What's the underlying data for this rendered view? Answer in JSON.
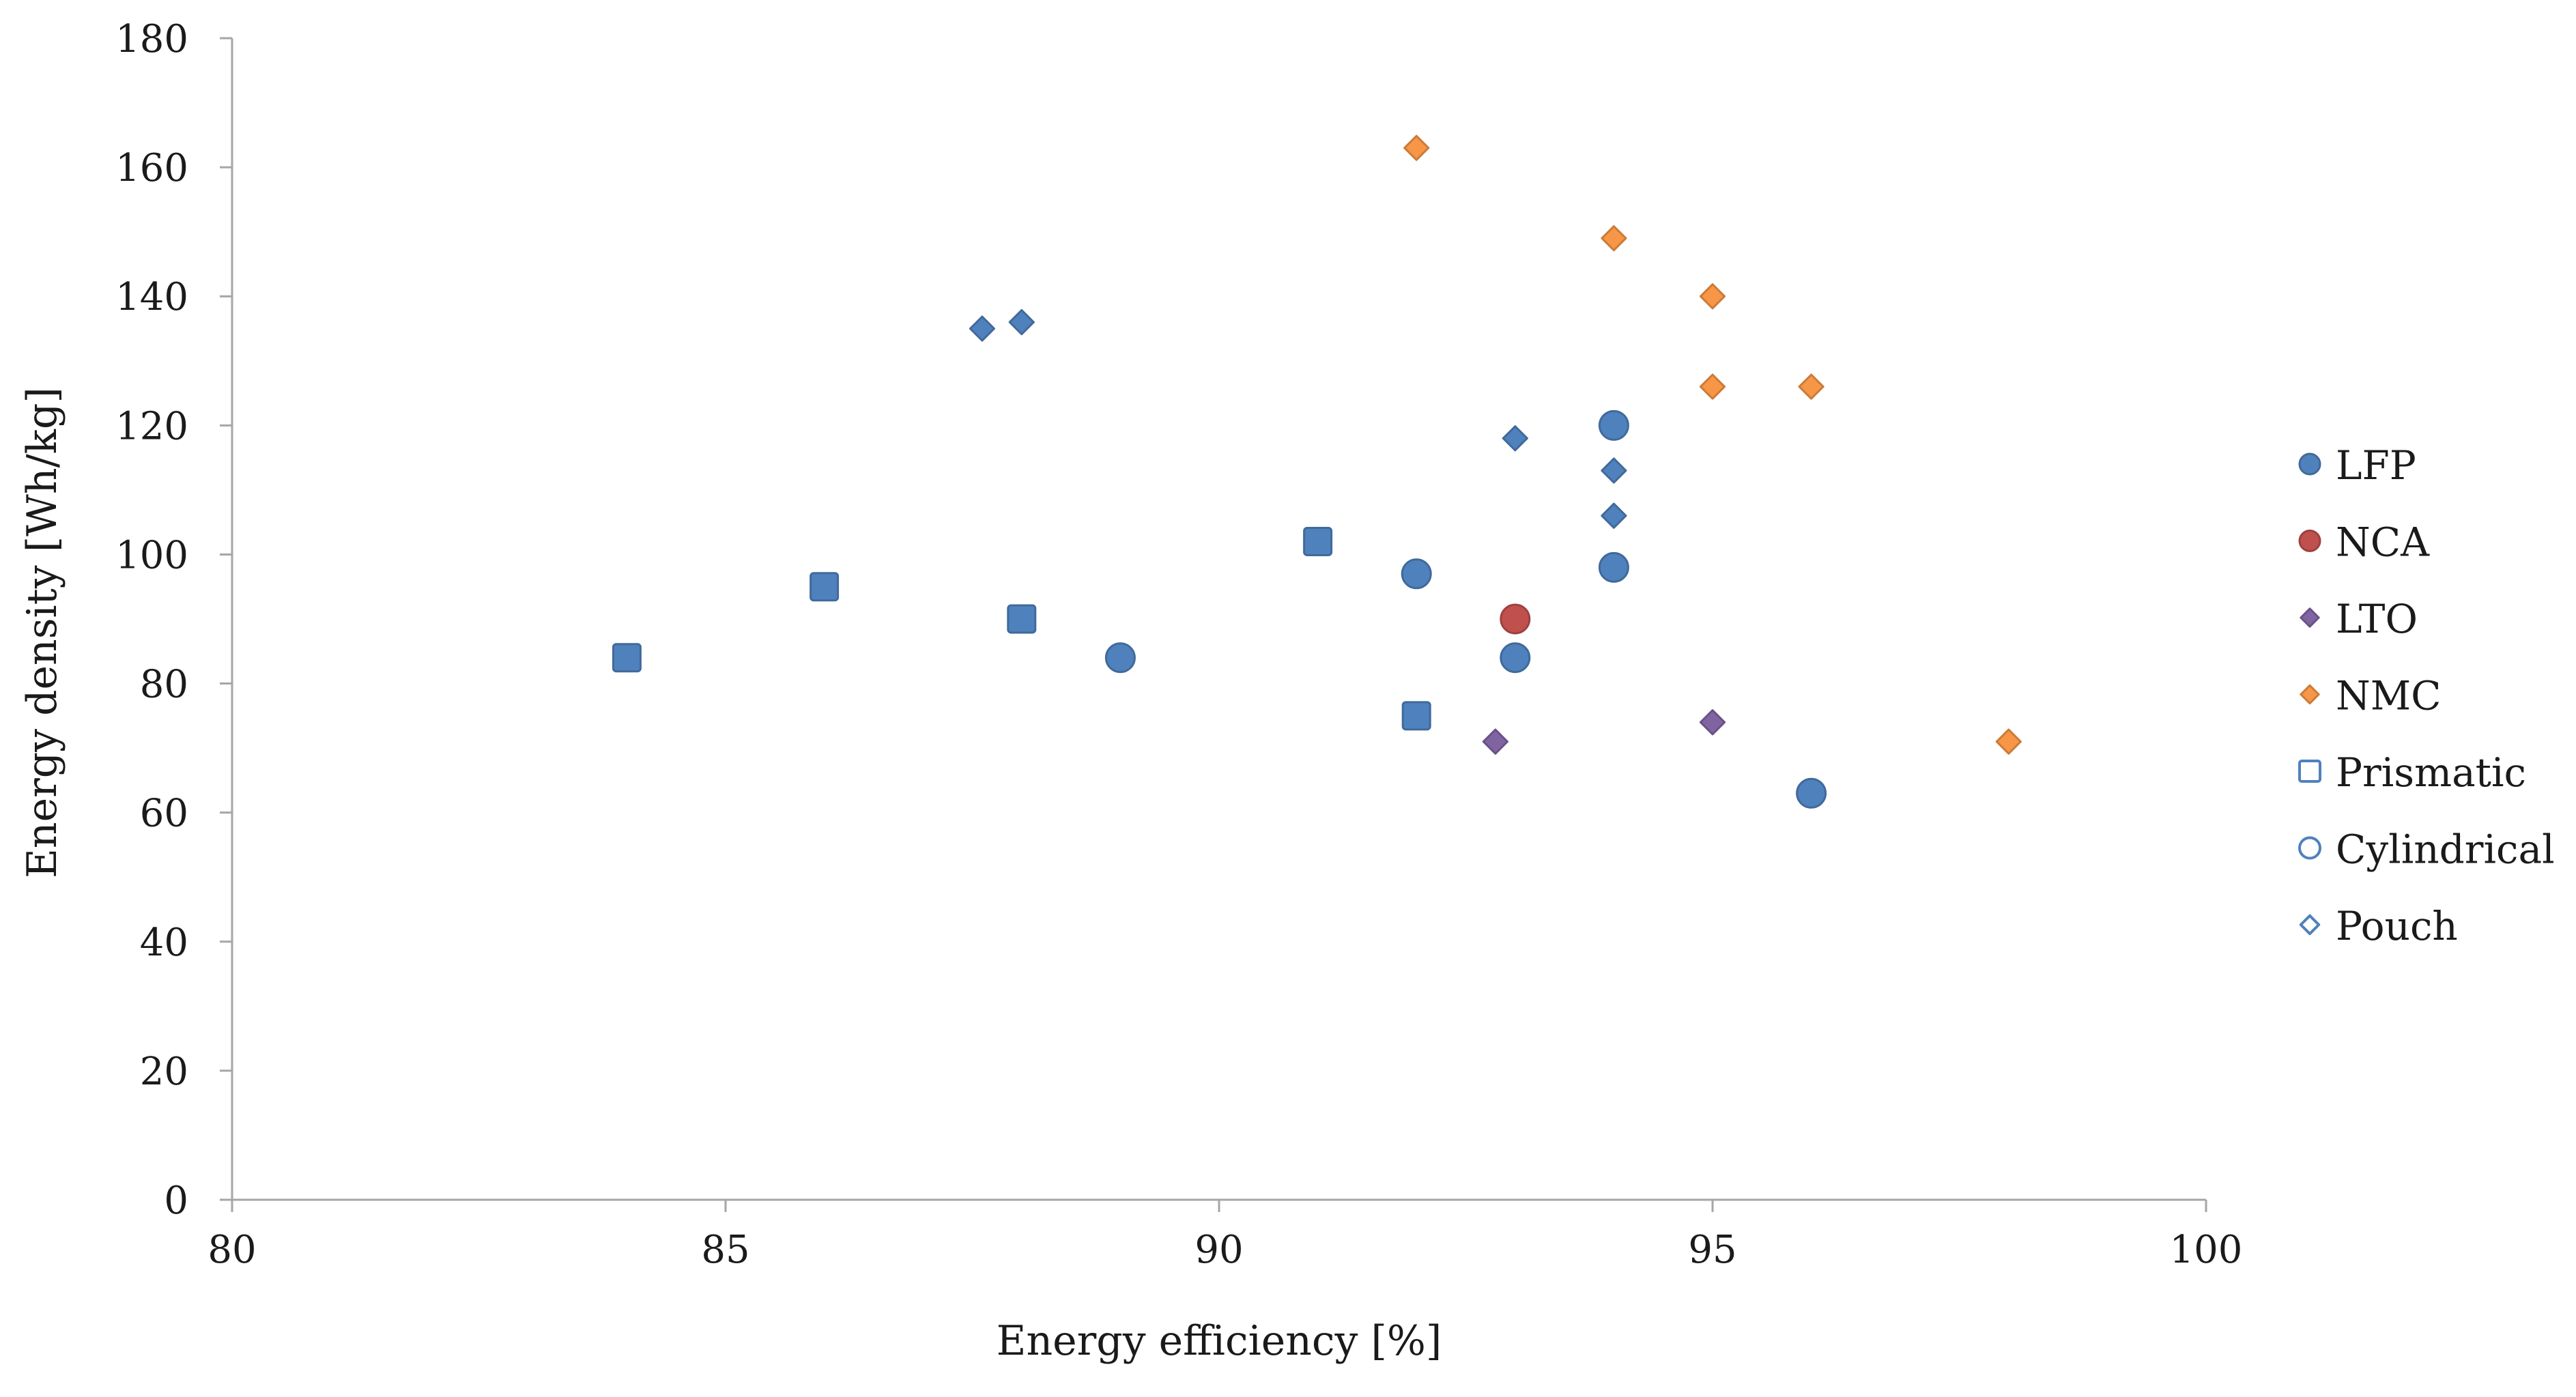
{
  "chart_data": {
    "type": "scatter",
    "title": "",
    "xlabel": "Energy efficiency [%]",
    "ylabel": "Energy density [Wh/kg]",
    "xlim": [
      80,
      100
    ],
    "ylim": [
      0,
      180
    ],
    "x_ticks": [
      80,
      85,
      90,
      95,
      100
    ],
    "y_ticks": [
      0,
      20,
      40,
      60,
      80,
      100,
      120,
      140,
      160,
      180
    ],
    "x_tick_labels": [
      "80",
      "85",
      "90",
      "95",
      "100"
    ],
    "y_tick_labels": [
      "0",
      "20",
      "40",
      "60",
      "80",
      "100",
      "120",
      "140",
      "160",
      "180"
    ],
    "grid": false,
    "legend_position": "right",
    "chemistry_colors": {
      "LFP": "#4f81bd",
      "NCA": "#c0504d",
      "LTO": "#8064a2",
      "NMC": "#f79646"
    },
    "legend": [
      {
        "label": "LFP",
        "kind": "chemistry",
        "marker": "circle",
        "filled": true,
        "color": "#4f81bd"
      },
      {
        "label": "NCA",
        "kind": "chemistry",
        "marker": "circle",
        "filled": true,
        "color": "#c0504d"
      },
      {
        "label": "LTO",
        "kind": "chemistry",
        "marker": "diamond",
        "filled": true,
        "color": "#8064a2"
      },
      {
        "label": "NMC",
        "kind": "chemistry",
        "marker": "diamond",
        "filled": true,
        "color": "#f79646"
      },
      {
        "label": "Prismatic",
        "kind": "format",
        "marker": "square",
        "filled": false,
        "color": "#4f81bd"
      },
      {
        "label": "Cylindrical",
        "kind": "format",
        "marker": "circle",
        "filled": false,
        "color": "#4f81bd"
      },
      {
        "label": "Pouch",
        "kind": "format",
        "marker": "diamond",
        "filled": false,
        "color": "#4f81bd"
      }
    ],
    "points": [
      {
        "x": 84,
        "y": 84,
        "chemistry": "LFP",
        "format": "Prismatic"
      },
      {
        "x": 86,
        "y": 95,
        "chemistry": "LFP",
        "format": "Prismatic"
      },
      {
        "x": 88,
        "y": 90,
        "chemistry": "LFP",
        "format": "Prismatic"
      },
      {
        "x": 91,
        "y": 102,
        "chemistry": "LFP",
        "format": "Prismatic"
      },
      {
        "x": 92,
        "y": 75,
        "chemistry": "LFP",
        "format": "Prismatic"
      },
      {
        "x": 89,
        "y": 84,
        "chemistry": "LFP",
        "format": "Cylindrical"
      },
      {
        "x": 92,
        "y": 97,
        "chemistry": "LFP",
        "format": "Cylindrical"
      },
      {
        "x": 93,
        "y": 84,
        "chemistry": "LFP",
        "format": "Cylindrical"
      },
      {
        "x": 94,
        "y": 120,
        "chemistry": "LFP",
        "format": "Cylindrical"
      },
      {
        "x": 94,
        "y": 98,
        "chemistry": "LFP",
        "format": "Cylindrical"
      },
      {
        "x": 96,
        "y": 63,
        "chemistry": "LFP",
        "format": "Cylindrical"
      },
      {
        "x": 87.6,
        "y": 135,
        "chemistry": "LFP",
        "format": "Pouch"
      },
      {
        "x": 88,
        "y": 136,
        "chemistry": "LFP",
        "format": "Pouch"
      },
      {
        "x": 93,
        "y": 118,
        "chemistry": "LFP",
        "format": "Pouch"
      },
      {
        "x": 94,
        "y": 113,
        "chemistry": "LFP",
        "format": "Pouch"
      },
      {
        "x": 94,
        "y": 106,
        "chemistry": "LFP",
        "format": "Pouch"
      },
      {
        "x": 93,
        "y": 90,
        "chemistry": "NCA",
        "format": "Cylindrical"
      },
      {
        "x": 92.8,
        "y": 71,
        "chemistry": "LTO",
        "format": "Pouch"
      },
      {
        "x": 95,
        "y": 74,
        "chemistry": "LTO",
        "format": "Pouch"
      },
      {
        "x": 92,
        "y": 163,
        "chemistry": "NMC",
        "format": "Pouch"
      },
      {
        "x": 94,
        "y": 149,
        "chemistry": "NMC",
        "format": "Pouch"
      },
      {
        "x": 95,
        "y": 140,
        "chemistry": "NMC",
        "format": "Pouch"
      },
      {
        "x": 95,
        "y": 126,
        "chemistry": "NMC",
        "format": "Pouch"
      },
      {
        "x": 96,
        "y": 126,
        "chemistry": "NMC",
        "format": "Pouch"
      },
      {
        "x": 98,
        "y": 71,
        "chemistry": "NMC",
        "format": "Pouch"
      }
    ]
  }
}
